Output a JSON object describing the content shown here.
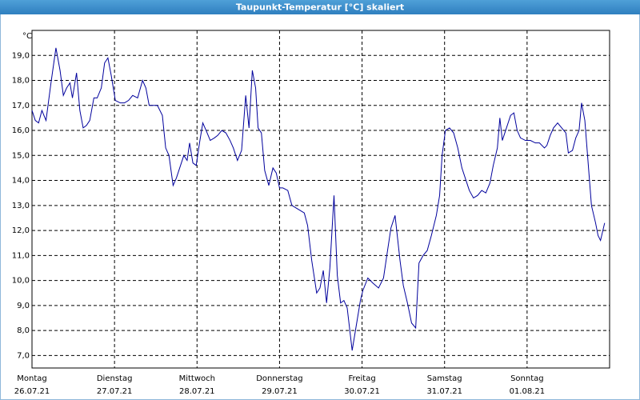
{
  "chart_data": {
    "type": "line",
    "title": "Taupunkt-Temperatur [°C] skaliert",
    "y_unit": "°C",
    "xlim": [
      0,
      7
    ],
    "ylim": [
      6.5,
      20.0
    ],
    "grid": true,
    "xticks": [
      {
        "value": 0,
        "label": "Montag",
        "sublabel": "26.07.21"
      },
      {
        "value": 1,
        "label": "Dienstag",
        "sublabel": "27.07.21"
      },
      {
        "value": 2,
        "label": "Mittwoch",
        "sublabel": "28.07.21"
      },
      {
        "value": 3,
        "label": "Donnerstag",
        "sublabel": "29.07.21"
      },
      {
        "value": 4,
        "label": "Freitag",
        "sublabel": "30.07.21"
      },
      {
        "value": 5,
        "label": "Samstag",
        "sublabel": "31.07.21"
      },
      {
        "value": 6,
        "label": "Sonntag",
        "sublabel": "01.08.21"
      }
    ],
    "yticks": [
      {
        "value": 7,
        "label": "7,0"
      },
      {
        "value": 8,
        "label": "8,0"
      },
      {
        "value": 9,
        "label": "9,0"
      },
      {
        "value": 10,
        "label": "10,0"
      },
      {
        "value": 11,
        "label": "11,0"
      },
      {
        "value": 12,
        "label": "12,0"
      },
      {
        "value": 13,
        "label": "13,0"
      },
      {
        "value": 14,
        "label": "14,0"
      },
      {
        "value": 15,
        "label": "15,0"
      },
      {
        "value": 16,
        "label": "16,0"
      },
      {
        "value": 17,
        "label": "17,0"
      },
      {
        "value": 18,
        "label": "18,0"
      },
      {
        "value": 19,
        "label": "19,0"
      }
    ],
    "x": [
      0,
      0.04,
      0.08,
      0.12,
      0.17,
      0.23,
      0.29,
      0.34,
      0.38,
      0.42,
      0.46,
      0.49,
      0.54,
      0.58,
      0.62,
      0.66,
      0.7,
      0.75,
      0.79,
      0.84,
      0.88,
      0.92,
      0.96,
      1.01,
      1.07,
      1.12,
      1.17,
      1.22,
      1.28,
      1.34,
      1.38,
      1.42,
      1.47,
      1.52,
      1.58,
      1.62,
      1.66,
      1.71,
      1.75,
      1.8,
      1.84,
      1.88,
      1.91,
      1.95,
      1.99,
      2.03,
      2.07,
      2.11,
      2.16,
      2.21,
      2.25,
      2.3,
      2.35,
      2.4,
      2.44,
      2.49,
      2.54,
      2.59,
      2.63,
      2.67,
      2.71,
      2.74,
      2.78,
      2.82,
      2.87,
      2.92,
      2.96,
      3.0,
      3.04,
      3.1,
      3.15,
      3.2,
      3.25,
      3.3,
      3.34,
      3.39,
      3.45,
      3.49,
      3.53,
      3.57,
      3.61,
      3.66,
      3.7,
      3.74,
      3.78,
      3.82,
      3.88,
      3.92,
      3.98,
      4.01,
      4.07,
      4.13,
      4.2,
      4.26,
      4.3,
      4.35,
      4.4,
      4.46,
      4.5,
      4.55,
      4.6,
      4.65,
      4.69,
      4.74,
      4.79,
      4.84,
      4.9,
      4.94,
      4.97,
      5.01,
      5.06,
      5.11,
      5.16,
      5.21,
      5.26,
      5.3,
      5.35,
      5.4,
      5.45,
      5.5,
      5.55,
      5.59,
      5.64,
      5.67,
      5.7,
      5.75,
      5.8,
      5.84,
      5.88,
      5.92,
      5.98,
      6.04,
      6.1,
      6.15,
      6.21,
      6.24,
      6.28,
      6.32,
      6.37,
      6.42,
      6.47,
      6.5,
      6.55,
      6.59,
      6.63,
      6.66,
      6.7,
      6.74,
      6.78,
      6.83,
      6.86,
      6.89,
      6.94
    ],
    "series": [
      {
        "color": "#00009c",
        "values": [
          16.8,
          16.4,
          16.3,
          16.8,
          16.4,
          17.9,
          19.3,
          18.4,
          17.4,
          17.7,
          17.9,
          17.3,
          18.3,
          16.8,
          16.1,
          16.2,
          16.4,
          17.3,
          17.3,
          17.7,
          18.7,
          18.9,
          18.2,
          17.2,
          17.1,
          17.1,
          17.2,
          17.4,
          17.3,
          18.0,
          17.7,
          17.0,
          17.0,
          17.0,
          16.6,
          15.3,
          15.0,
          13.8,
          14.1,
          14.6,
          15.0,
          14.8,
          15.5,
          14.7,
          14.6,
          15.5,
          16.3,
          16.0,
          15.6,
          15.7,
          15.8,
          16.0,
          15.9,
          15.6,
          15.3,
          14.8,
          15.2,
          17.4,
          16.1,
          18.4,
          17.7,
          16.1,
          15.9,
          14.4,
          13.8,
          14.5,
          14.3,
          13.7,
          13.7,
          13.6,
          13.0,
          12.9,
          12.8,
          12.7,
          12.2,
          10.8,
          9.5,
          9.7,
          10.4,
          9.1,
          10.5,
          13.4,
          10.2,
          9.1,
          9.2,
          8.9,
          7.2,
          8.0,
          9.2,
          9.6,
          10.1,
          9.9,
          9.7,
          10.1,
          11.0,
          12.1,
          12.6,
          10.8,
          9.8,
          9.1,
          8.3,
          8.1,
          10.7,
          11.0,
          11.2,
          11.8,
          12.6,
          13.4,
          15.0,
          16.0,
          16.1,
          15.9,
          15.3,
          14.5,
          14.0,
          13.6,
          13.3,
          13.4,
          13.6,
          13.5,
          13.9,
          14.6,
          15.3,
          16.5,
          15.6,
          16.1,
          16.6,
          16.7,
          16.0,
          15.7,
          15.6,
          15.6,
          15.5,
          15.5,
          15.3,
          15.4,
          15.8,
          16.1,
          16.3,
          16.1,
          15.9,
          15.1,
          15.2,
          15.7,
          16.0,
          17.1,
          16.4,
          14.7,
          13.0,
          12.3,
          11.8,
          11.6,
          12.3
        ]
      }
    ]
  }
}
